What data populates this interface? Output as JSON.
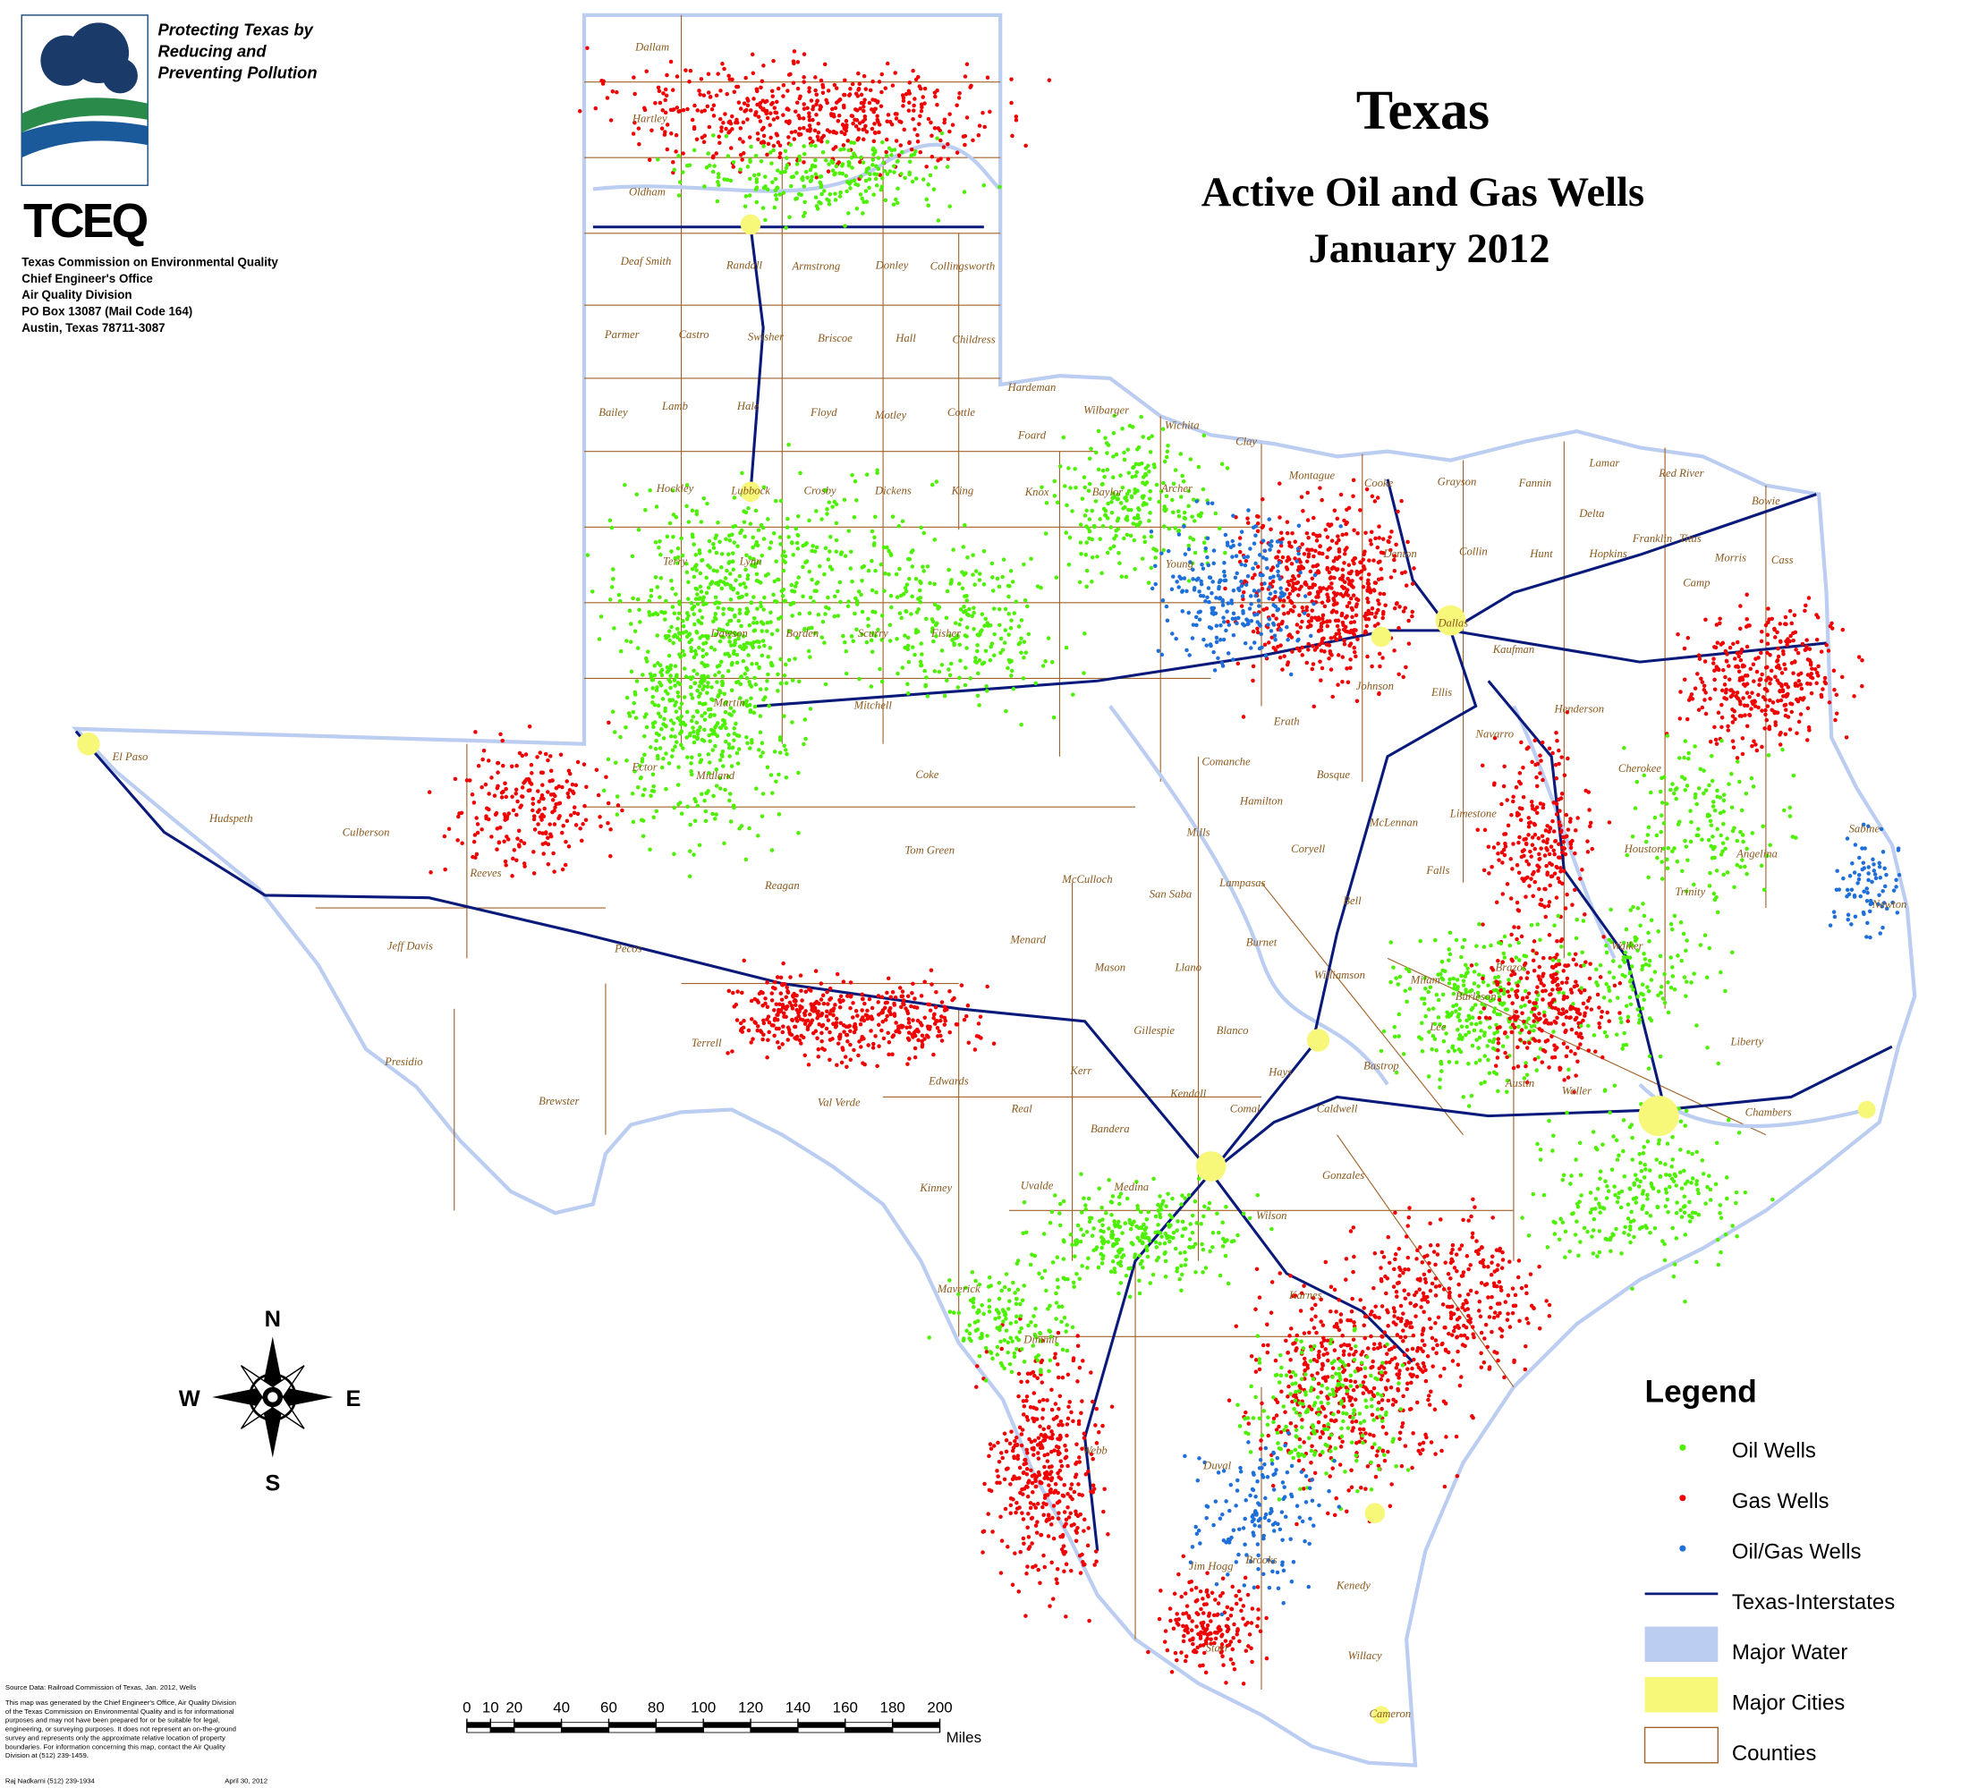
{
  "header": {
    "slogan": [
      "Protecting Texas by",
      "Reducing and",
      "Preventing Pollution"
    ],
    "logo": "TCEQ",
    "address": [
      "Texas Commission on Environmental Quality",
      "Chief Engineer's Office",
      "Air Quality Division",
      "PO Box 13087 (Mail Code 164)",
      "Austin, Texas 78711-3087"
    ]
  },
  "title": {
    "state": "Texas",
    "subtitle": "Active Oil and Gas Wells",
    "date": "January 2012"
  },
  "compass": {
    "north": "N",
    "south": "S",
    "east": "E",
    "west": "W"
  },
  "scale_bar": {
    "ticks": [
      0,
      10,
      20,
      40,
      60,
      80,
      100,
      120,
      140,
      160,
      180,
      200
    ],
    "unit": "Miles"
  },
  "legend": {
    "title": "Legend",
    "items": [
      {
        "label": "Oil Wells",
        "color": "#4cf000"
      },
      {
        "label": "Gas Wells",
        "color": "#f00000"
      },
      {
        "label": "Oil/Gas Wells",
        "color": "#1e6fd9"
      },
      {
        "label": "Texas-Interstates",
        "color": "#0a1a7a"
      },
      {
        "label": "Major Water",
        "color": "#bccdf2"
      },
      {
        "label": "Major Cities",
        "color": "#f7f77a"
      },
      {
        "label": "Counties",
        "color": "#a0632a"
      }
    ]
  },
  "counties": [
    "Dallam",
    "Hartley",
    "Oldham",
    "Deaf Smith",
    "Randall",
    "Armstrong",
    "Donley",
    "Collingsworth",
    "Parmer",
    "Castro",
    "Swisher",
    "Briscoe",
    "Hall",
    "Childress",
    "Bailey",
    "Lamb",
    "Hale",
    "Floyd",
    "Motley",
    "Cottle",
    "Hardeman",
    "Wilbarger",
    "Foard",
    "Wichita",
    "Clay",
    "Montague",
    "Cooke",
    "Grayson",
    "Fannin",
    "Lamar",
    "Red River",
    "Bowie",
    "Lubbock",
    "Crosby",
    "Dickens",
    "King",
    "Knox",
    "Baylor",
    "Archer",
    "Delta",
    "Franklin",
    "Titus",
    "Morris",
    "Cass",
    "Camp",
    "Terry",
    "Lynn",
    "Collin",
    "Hunt",
    "Hopkins",
    "Kaufman",
    "Dallas",
    "Ellis",
    "Navarro",
    "Henderson",
    "Cherokee",
    "Erath",
    "Comanche",
    "Hamilton",
    "Bosque",
    "Coryell",
    "McLennan",
    "Limestone",
    "Mills",
    "Lampasas",
    "San Saba",
    "McCulloch",
    "Houston",
    "Angelina",
    "Sabine",
    "Newton",
    "Trinity",
    "Burnet",
    "Llano",
    "Mason",
    "Menard",
    "Williamson",
    "Milam",
    "Gillespie",
    "Blanco",
    "Hays",
    "Bastrop",
    "Kerr",
    "Kendall",
    "Comal",
    "Bandera",
    "Real",
    "Kinney",
    "Uvalde",
    "Medina",
    "Terrell",
    "Val Verde",
    "Brewster",
    "Presidio",
    "Jeff Davis",
    "Culberson",
    "Hudspeth",
    "El Paso",
    "Reeves",
    "Pecos",
    "Martin",
    "Borden",
    "Dawson",
    "Mitchell",
    "Coke",
    "Tom Green",
    "Reagan",
    "Midland",
    "Ector",
    "Scurry",
    "Fisher",
    "Liberty",
    "Chambers",
    "Waller",
    "Webb",
    "Duval",
    "Brooks",
    "Kenedy",
    "Willacy",
    "Cameron",
    "Starr",
    "Jim Hogg",
    "Maverick",
    "Dimmit",
    "Karnes",
    "Wilson",
    "Gonzales",
    "Caldwell",
    "Lee",
    "Burleson",
    "Brazos",
    "Walker",
    "Austin",
    "Edwards",
    "Hockley",
    "Falls",
    "Bell",
    "Johnson",
    "Denton",
    "Young"
  ],
  "notes": {
    "source": "Source Data: Railroad Commission of Texas, Jan. 2012, Wells",
    "disclaimer": [
      "This map was generated by the Chief Engineer's Office, Air Quality Division",
      "of the Texas Commission on Environmental Quality and is for informational",
      "purposes and may not have been prepared for or be suitable for legal,",
      "engineering, or surveying purposes. It does not represent an on-the-ground",
      "survey and represents only the approximate relative location of property",
      "boundaries. For information concerning this map, contact the Air Quality",
      "Division at (512) 239-1459."
    ],
    "author": "Raj Nadkarni (512) 239-1934",
    "date": "April 30, 2012"
  }
}
